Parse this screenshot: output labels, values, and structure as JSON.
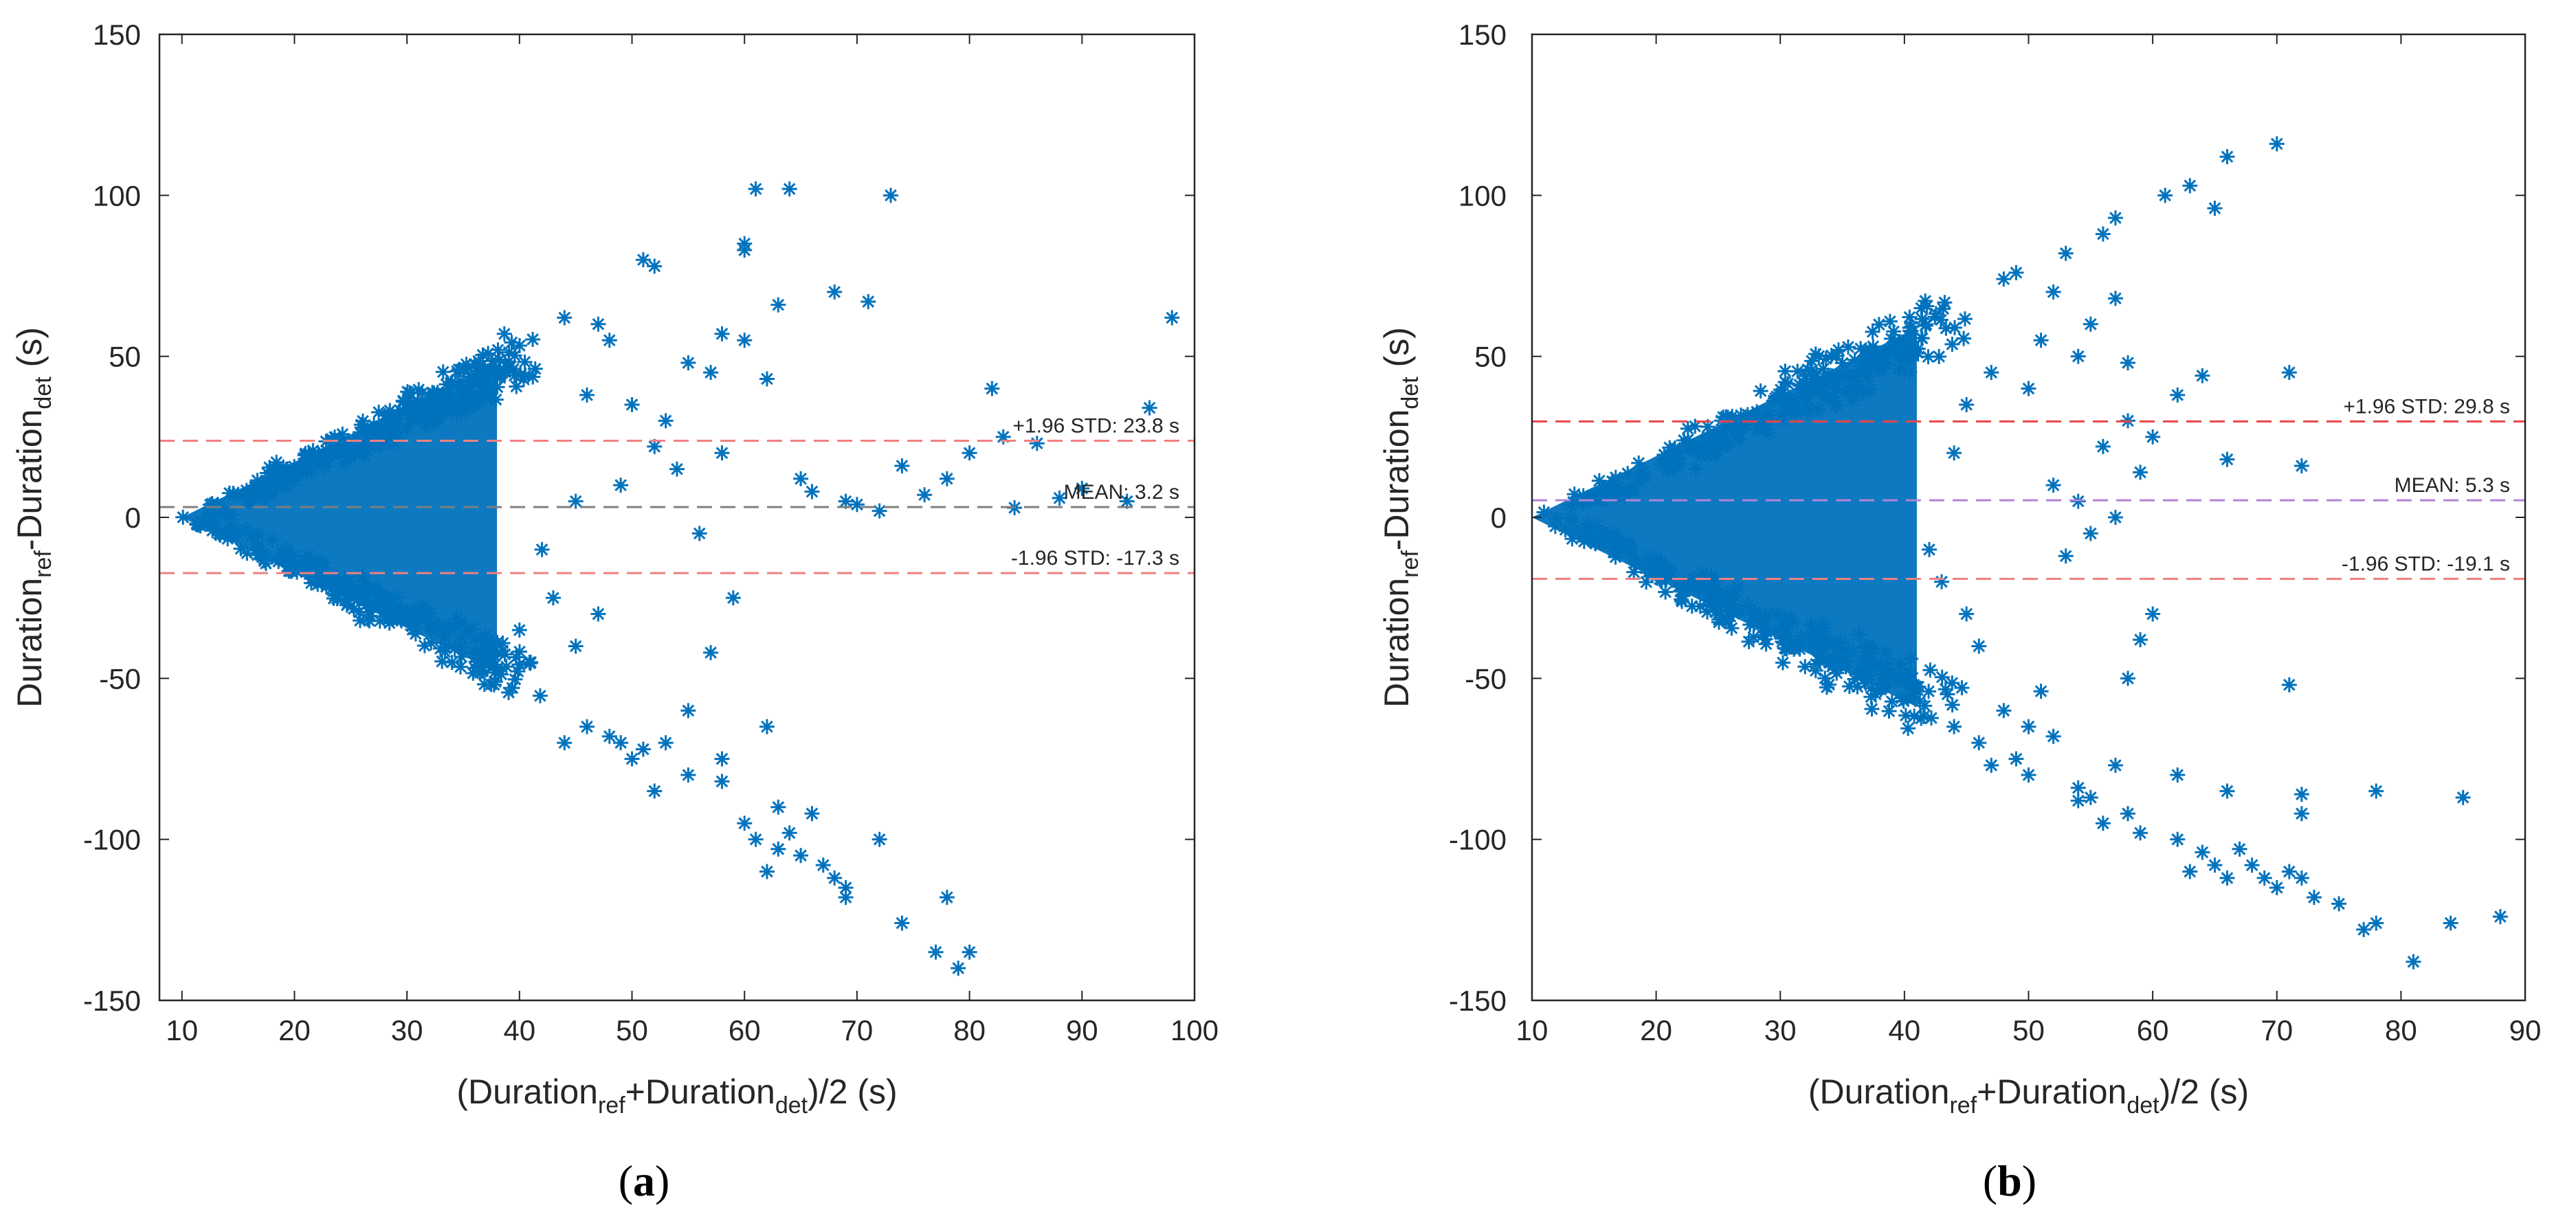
{
  "chart_data": [
    {
      "type": "scatter",
      "panel_label": "a",
      "title": "",
      "xlabel": {
        "main": "(Duration",
        "sub1": "ref",
        "mid": "+Duration",
        "sub2": "det",
        "tail": ")/2 (s)"
      },
      "ylabel": {
        "main": "Duration",
        "sub1": "ref",
        "mid": "-Duration",
        "sub2": "det",
        "tail": " (s)"
      },
      "xlim": [
        8,
        100
      ],
      "ylim": [
        -150,
        150
      ],
      "xticks": [
        10,
        20,
        30,
        40,
        50,
        60,
        70,
        80,
        90,
        100
      ],
      "yticks": [
        -150,
        -100,
        -50,
        0,
        50,
        100,
        150
      ],
      "x_tick_labels": [
        "10",
        "20",
        "30",
        "40",
        "50",
        "60",
        "70",
        "80",
        "90",
        "100"
      ],
      "y_tick_labels": [
        "-150",
        "-100",
        "-50",
        "0",
        "50",
        "100",
        "150"
      ],
      "marker": "*",
      "marker_color": "#0072BD",
      "dense_region": {
        "x_start": 10,
        "x_end": 38,
        "upper_slope": 1.72,
        "lower_slope": -1.72
      },
      "points": [
        [
          61,
          102
        ],
        [
          64,
          102
        ],
        [
          73,
          100
        ],
        [
          60,
          85
        ],
        [
          60,
          83
        ],
        [
          51,
          80
        ],
        [
          52,
          78
        ],
        [
          68,
          70
        ],
        [
          71,
          67
        ],
        [
          98,
          62
        ],
        [
          63,
          66
        ],
        [
          58,
          57
        ],
        [
          60,
          55
        ],
        [
          55,
          48
        ],
        [
          57,
          45
        ],
        [
          62,
          43
        ],
        [
          82,
          40
        ],
        [
          96,
          34
        ],
        [
          83,
          25
        ],
        [
          86,
          23
        ],
        [
          80,
          20
        ],
        [
          74,
          16
        ],
        [
          78,
          12
        ],
        [
          90,
          9
        ],
        [
          88,
          6
        ],
        [
          94,
          5
        ],
        [
          84,
          3
        ],
        [
          70,
          4
        ],
        [
          66,
          8
        ],
        [
          72,
          2
        ],
        [
          76,
          7
        ],
        [
          69,
          5
        ],
        [
          65,
          12
        ],
        [
          58,
          20
        ],
        [
          53,
          30
        ],
        [
          48,
          55
        ],
        [
          47,
          60
        ],
        [
          44,
          62
        ],
        [
          46,
          38
        ],
        [
          50,
          35
        ],
        [
          54,
          15
        ],
        [
          56,
          -5
        ],
        [
          59,
          -25
        ],
        [
          57,
          -42
        ],
        [
          55,
          -60
        ],
        [
          53,
          -70
        ],
        [
          50,
          -75
        ],
        [
          48,
          -68
        ],
        [
          46,
          -65
        ],
        [
          44,
          -70
        ],
        [
          58,
          -75
        ],
        [
          58,
          -82
        ],
        [
          60,
          -95
        ],
        [
          61,
          -100
        ],
        [
          62,
          -65
        ],
        [
          63,
          -90
        ],
        [
          64,
          -98
        ],
        [
          65,
          -105
        ],
        [
          66,
          -92
        ],
        [
          68,
          -112
        ],
        [
          69,
          -115
        ],
        [
          69,
          -118
        ],
        [
          67,
          -108
        ],
        [
          72,
          -100
        ],
        [
          74,
          -126
        ],
        [
          77,
          -135
        ],
        [
          78,
          -118
        ],
        [
          79,
          -140
        ],
        [
          80,
          -135
        ],
        [
          62,
          -110
        ],
        [
          63,
          -103
        ],
        [
          55,
          -80
        ],
        [
          52,
          -85
        ],
        [
          51,
          -72
        ],
        [
          49,
          -70
        ],
        [
          47,
          -30
        ],
        [
          45,
          -40
        ],
        [
          43,
          -25
        ],
        [
          41,
          -45
        ],
        [
          40,
          -35
        ],
        [
          42,
          -10
        ],
        [
          45,
          5
        ],
        [
          49,
          10
        ],
        [
          52,
          22
        ]
      ],
      "reference_lines": [
        {
          "name": "upper",
          "label": "+1.96 STD: 23.8 s",
          "y": 23.8,
          "color": "#F08080",
          "dash": "dashed"
        },
        {
          "name": "mean",
          "label": "MEAN: 3.2 s",
          "y": 3.2,
          "color": "#7f7f7f",
          "dash": "dashed"
        },
        {
          "name": "lower",
          "label": "-1.96 STD: -17.3 s",
          "y": -17.3,
          "color": "#F08080",
          "dash": "dashed"
        }
      ]
    },
    {
      "type": "scatter",
      "panel_label": "b",
      "title": "",
      "xlabel": {
        "main": "(Duration",
        "sub1": "ref",
        "mid": "+Duration",
        "sub2": "det",
        "tail": ")/2 (s)"
      },
      "ylabel": {
        "main": "Duration",
        "sub1": "ref",
        "mid": "-Duration",
        "sub2": "det",
        "tail": " (s)"
      },
      "xlim": [
        10,
        90
      ],
      "ylim": [
        -150,
        150
      ],
      "xticks": [
        10,
        20,
        30,
        40,
        50,
        60,
        70,
        80,
        90
      ],
      "yticks": [
        -150,
        -100,
        -50,
        0,
        50,
        100,
        150
      ],
      "x_tick_labels": [
        "10",
        "20",
        "30",
        "40",
        "50",
        "60",
        "70",
        "80",
        "90"
      ],
      "y_tick_labels": [
        "-150",
        "-100",
        "-50",
        "0",
        "50",
        "100",
        "150"
      ],
      "marker": "*",
      "marker_color": "#0072BD",
      "dense_region": {
        "x_start": 10,
        "x_end": 41,
        "upper_slope": 1.9,
        "lower_slope": -1.9
      },
      "points": [
        [
          70,
          116
        ],
        [
          66,
          112
        ],
        [
          63,
          103
        ],
        [
          61,
          100
        ],
        [
          65,
          96
        ],
        [
          57,
          93
        ],
        [
          56,
          88
        ],
        [
          53,
          82
        ],
        [
          49,
          76
        ],
        [
          48,
          74
        ],
        [
          52,
          70
        ],
        [
          57,
          68
        ],
        [
          55,
          60
        ],
        [
          51,
          55
        ],
        [
          54,
          50
        ],
        [
          58,
          48
        ],
        [
          64,
          44
        ],
        [
          71,
          45
        ],
        [
          62,
          38
        ],
        [
          58,
          30
        ],
        [
          60,
          25
        ],
        [
          56,
          22
        ],
        [
          66,
          18
        ],
        [
          72,
          16
        ],
        [
          59,
          14
        ],
        [
          52,
          10
        ],
        [
          54,
          5
        ],
        [
          57,
          0
        ],
        [
          55,
          -5
        ],
        [
          53,
          -12
        ],
        [
          60,
          -30
        ],
        [
          59,
          -38
        ],
        [
          58,
          -50
        ],
        [
          51,
          -54
        ],
        [
          48,
          -60
        ],
        [
          46,
          -70
        ],
        [
          44,
          -65
        ],
        [
          47,
          -77
        ],
        [
          49,
          -75
        ],
        [
          50,
          -80
        ],
        [
          55,
          -87
        ],
        [
          54,
          -84
        ],
        [
          58,
          -92
        ],
        [
          59,
          -98
        ],
        [
          62,
          -100
        ],
        [
          64,
          -104
        ],
        [
          65,
          -108
        ],
        [
          66,
          -112
        ],
        [
          63,
          -110
        ],
        [
          67,
          -103
        ],
        [
          68,
          -108
        ],
        [
          69,
          -112
        ],
        [
          70,
          -115
        ],
        [
          71,
          -110
        ],
        [
          72,
          -112
        ],
        [
          73,
          -118
        ],
        [
          75,
          -120
        ],
        [
          77,
          -128
        ],
        [
          78,
          -126
        ],
        [
          81,
          -138
        ],
        [
          84,
          -126
        ],
        [
          88,
          -124
        ],
        [
          85,
          -87
        ],
        [
          78,
          -85
        ],
        [
          72,
          -86
        ],
        [
          72,
          -92
        ],
        [
          71,
          -52
        ],
        [
          66,
          -85
        ],
        [
          62,
          -80
        ],
        [
          57,
          -77
        ],
        [
          56,
          -95
        ],
        [
          54,
          -88
        ],
        [
          52,
          -68
        ],
        [
          50,
          -65
        ],
        [
          46,
          -40
        ],
        [
          45,
          -30
        ],
        [
          43,
          -20
        ],
        [
          42,
          -10
        ],
        [
          44,
          20
        ],
        [
          45,
          35
        ],
        [
          47,
          45
        ],
        [
          50,
          40
        ]
      ],
      "reference_lines": [
        {
          "name": "upper",
          "label": "+1.96 STD: 29.8 s",
          "y": 29.8,
          "color": "#E8454A",
          "dash": "dashed"
        },
        {
          "name": "mean",
          "label": "MEAN: 5.3 s",
          "y": 5.3,
          "color": "#B384D6",
          "dash": "dashed"
        },
        {
          "name": "lower",
          "label": "-1.96 STD: -19.1 s",
          "y": -19.1,
          "color": "#F08080",
          "dash": "dashed"
        }
      ]
    }
  ],
  "captions": {
    "a": "a",
    "b": "b"
  }
}
